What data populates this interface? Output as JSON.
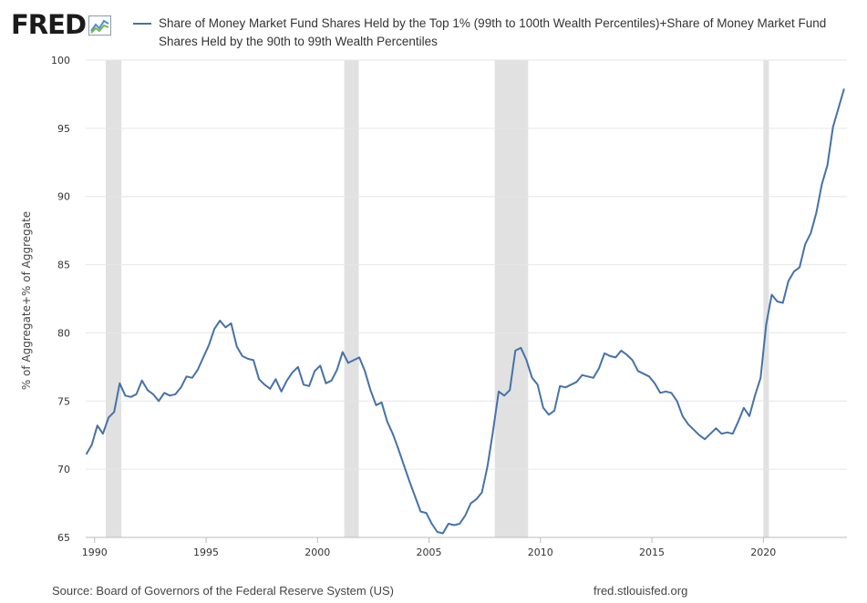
{
  "logo": {
    "text": "FRED",
    "icon": "fred-chart-icon"
  },
  "legend": {
    "label": "Share of Money Market Fund Shares Held by the Top 1% (99th to 100th Wealth Percentiles)+Share of Money Market Fund Shares Held by the 90th to 99th Wealth Percentiles",
    "color": "#4572a7"
  },
  "footer": {
    "source": "Source: Board of Governors of the Federal Reserve System (US)",
    "site": "fred.stlouisfed.org"
  },
  "chart_data": {
    "type": "line",
    "title": "",
    "xlabel": "",
    "ylabel": "% of Aggregate+% of Aggregate",
    "ylim": [
      65,
      100
    ],
    "xlim": [
      1989.6,
      2023.75
    ],
    "yticks": [
      "65",
      "70",
      "75",
      "80",
      "85",
      "90",
      "95",
      "100"
    ],
    "xticks": [
      "1990",
      "1995",
      "2000",
      "2005",
      "2010",
      "2015",
      "2020"
    ],
    "grid": "horizontal",
    "recessions": [
      [
        1990.5,
        1991.2
      ],
      [
        2001.2,
        2001.85
      ],
      [
        2007.95,
        2009.45
      ],
      [
        2020.0,
        2020.25
      ]
    ],
    "series": [
      {
        "name": "Share of Money Market Fund Shares Held by the Top 1% (99th to 100th Wealth Percentiles)+Share of Money Market Fund Shares Held by the 90th to 99th Wealth Percentiles",
        "color": "#4572a7",
        "x": [
          1989.625,
          1989.875,
          1990.125,
          1990.375,
          1990.625,
          1990.875,
          1991.125,
          1991.375,
          1991.625,
          1991.875,
          1992.125,
          1992.375,
          1992.625,
          1992.875,
          1993.125,
          1993.375,
          1993.625,
          1993.875,
          1994.125,
          1994.375,
          1994.625,
          1994.875,
          1995.125,
          1995.375,
          1995.625,
          1995.875,
          1996.125,
          1996.375,
          1996.625,
          1996.875,
          1997.125,
          1997.375,
          1997.625,
          1997.875,
          1998.125,
          1998.375,
          1998.625,
          1998.875,
          1999.125,
          1999.375,
          1999.625,
          1999.875,
          2000.125,
          2000.375,
          2000.625,
          2000.875,
          2001.125,
          2001.375,
          2001.625,
          2001.875,
          2002.125,
          2002.375,
          2002.625,
          2002.875,
          2003.125,
          2003.375,
          2003.625,
          2003.875,
          2004.125,
          2004.375,
          2004.625,
          2004.875,
          2005.125,
          2005.375,
          2005.625,
          2005.875,
          2006.125,
          2006.375,
          2006.625,
          2006.875,
          2007.125,
          2007.375,
          2007.625,
          2007.875,
          2008.125,
          2008.375,
          2008.625,
          2008.875,
          2009.125,
          2009.375,
          2009.625,
          2009.875,
          2010.125,
          2010.375,
          2010.625,
          2010.875,
          2011.125,
          2011.375,
          2011.625,
          2011.875,
          2012.125,
          2012.375,
          2012.625,
          2012.875,
          2013.125,
          2013.375,
          2013.625,
          2013.875,
          2014.125,
          2014.375,
          2014.625,
          2014.875,
          2015.125,
          2015.375,
          2015.625,
          2015.875,
          2016.125,
          2016.375,
          2016.625,
          2016.875,
          2017.125,
          2017.375,
          2017.625,
          2017.875,
          2018.125,
          2018.375,
          2018.625,
          2018.875,
          2019.125,
          2019.375,
          2019.625,
          2019.875,
          2020.125,
          2020.375,
          2020.625,
          2020.875,
          2021.125,
          2021.375,
          2021.625,
          2021.875,
          2022.125,
          2022.375,
          2022.625,
          2022.875,
          2023.125,
          2023.375,
          2023.625
        ],
        "values": [
          71.1,
          71.8,
          73.2,
          72.6,
          73.8,
          74.2,
          76.3,
          75.4,
          75.3,
          75.5,
          76.5,
          75.8,
          75.5,
          75.0,
          75.6,
          75.4,
          75.5,
          76.0,
          76.8,
          76.7,
          77.3,
          78.2,
          79.1,
          80.3,
          80.9,
          80.4,
          80.7,
          79.0,
          78.3,
          78.1,
          78.0,
          76.6,
          76.2,
          75.9,
          76.6,
          75.7,
          76.5,
          77.1,
          77.5,
          76.2,
          76.1,
          77.2,
          77.6,
          76.3,
          76.5,
          77.3,
          78.6,
          77.8,
          78.0,
          78.2,
          77.2,
          75.8,
          74.7,
          74.9,
          73.5,
          72.6,
          71.5,
          70.3,
          69.1,
          68.0,
          66.9,
          66.8,
          66.0,
          65.4,
          65.3,
          66.0,
          65.9,
          66.0,
          66.6,
          67.5,
          67.8,
          68.3,
          70.2,
          72.8,
          75.7,
          75.4,
          75.8,
          78.7,
          78.9,
          78.0,
          76.7,
          76.2,
          74.5,
          74.0,
          74.3,
          76.1,
          76.0,
          76.2,
          76.4,
          76.9,
          76.8,
          76.7,
          77.4,
          78.5,
          78.3,
          78.2,
          78.7,
          78.4,
          78.0,
          77.2,
          77.0,
          76.8,
          76.3,
          75.6,
          75.7,
          75.6,
          75.0,
          73.9,
          73.3,
          72.9,
          72.5,
          72.2,
          72.6,
          73.0,
          72.6,
          72.7,
          72.6,
          73.5,
          74.5,
          73.9,
          75.4,
          76.7,
          80.6,
          82.8,
          82.3,
          82.2,
          83.8,
          84.5,
          84.8,
          86.5,
          87.3,
          88.8,
          90.9,
          92.3,
          95.1,
          96.5,
          97.9
        ]
      }
    ]
  }
}
